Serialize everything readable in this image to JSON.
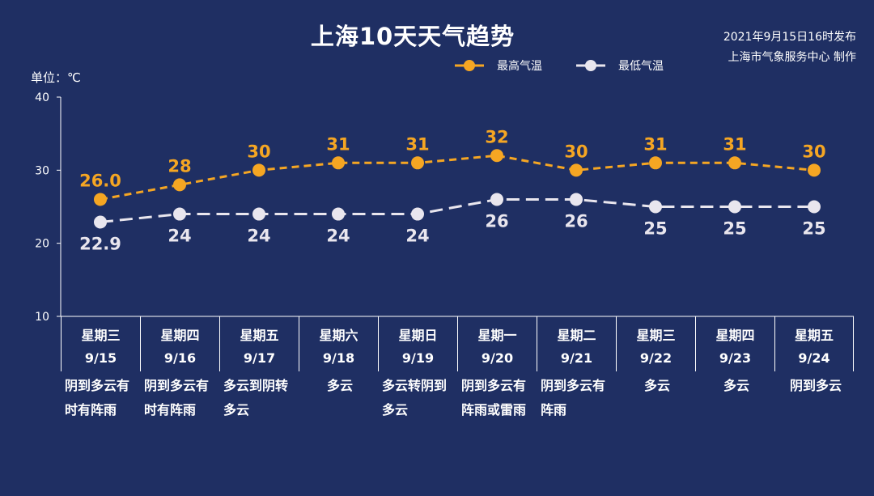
{
  "title": "上海10天天气趋势",
  "publish_time": "2021年9月15日16时发布",
  "publisher": "上海市气象服务中心 制作",
  "unit_label": "单位：℃",
  "legend": {
    "high": "最高气温",
    "low": "最低气温"
  },
  "colors": {
    "background": "#1f2f63",
    "high": "#f5a623",
    "low": "#e9e6ee"
  },
  "chart_data": {
    "type": "line",
    "title": "上海10天天气趋势",
    "ylabel": "单位：℃",
    "ylim": [
      10,
      40
    ],
    "yticks": [
      "10",
      "20",
      "30",
      "40"
    ],
    "grid": false,
    "legend_position": "top-right",
    "categories": [
      "9/15",
      "9/16",
      "9/17",
      "9/18",
      "9/19",
      "9/20",
      "9/21",
      "9/22",
      "9/23",
      "9/24"
    ],
    "series": [
      {
        "name": "最高气温",
        "values": [
          26.0,
          28,
          30,
          31,
          31,
          32,
          30,
          31,
          31,
          30
        ],
        "labels": [
          "26.0",
          "28",
          "30",
          "31",
          "31",
          "32",
          "30",
          "31",
          "31",
          "30"
        ]
      },
      {
        "name": "最低气温",
        "values": [
          22.9,
          24,
          24,
          24,
          24,
          26,
          26,
          25,
          25,
          25
        ],
        "labels": [
          "22.9",
          "24",
          "24",
          "24",
          "24",
          "26",
          "26",
          "25",
          "25",
          "25"
        ]
      }
    ]
  },
  "days": [
    {
      "weekday": "星期三",
      "date": "9/15",
      "weather": "阴到多云有时有阵雨"
    },
    {
      "weekday": "星期四",
      "date": "9/16",
      "weather": "阴到多云有时有阵雨"
    },
    {
      "weekday": "星期五",
      "date": "9/17",
      "weather": "多云到阴转多云"
    },
    {
      "weekday": "星期六",
      "date": "9/18",
      "weather": "多云"
    },
    {
      "weekday": "星期日",
      "date": "9/19",
      "weather": "多云转阴到多云"
    },
    {
      "weekday": "星期一",
      "date": "9/20",
      "weather": "阴到多云有阵雨或雷雨"
    },
    {
      "weekday": "星期二",
      "date": "9/21",
      "weather": "阴到多云有阵雨"
    },
    {
      "weekday": "星期三",
      "date": "9/22",
      "weather": "多云"
    },
    {
      "weekday": "星期四",
      "date": "9/23",
      "weather": "多云"
    },
    {
      "weekday": "星期五",
      "date": "9/24",
      "weather": "阴到多云"
    }
  ]
}
